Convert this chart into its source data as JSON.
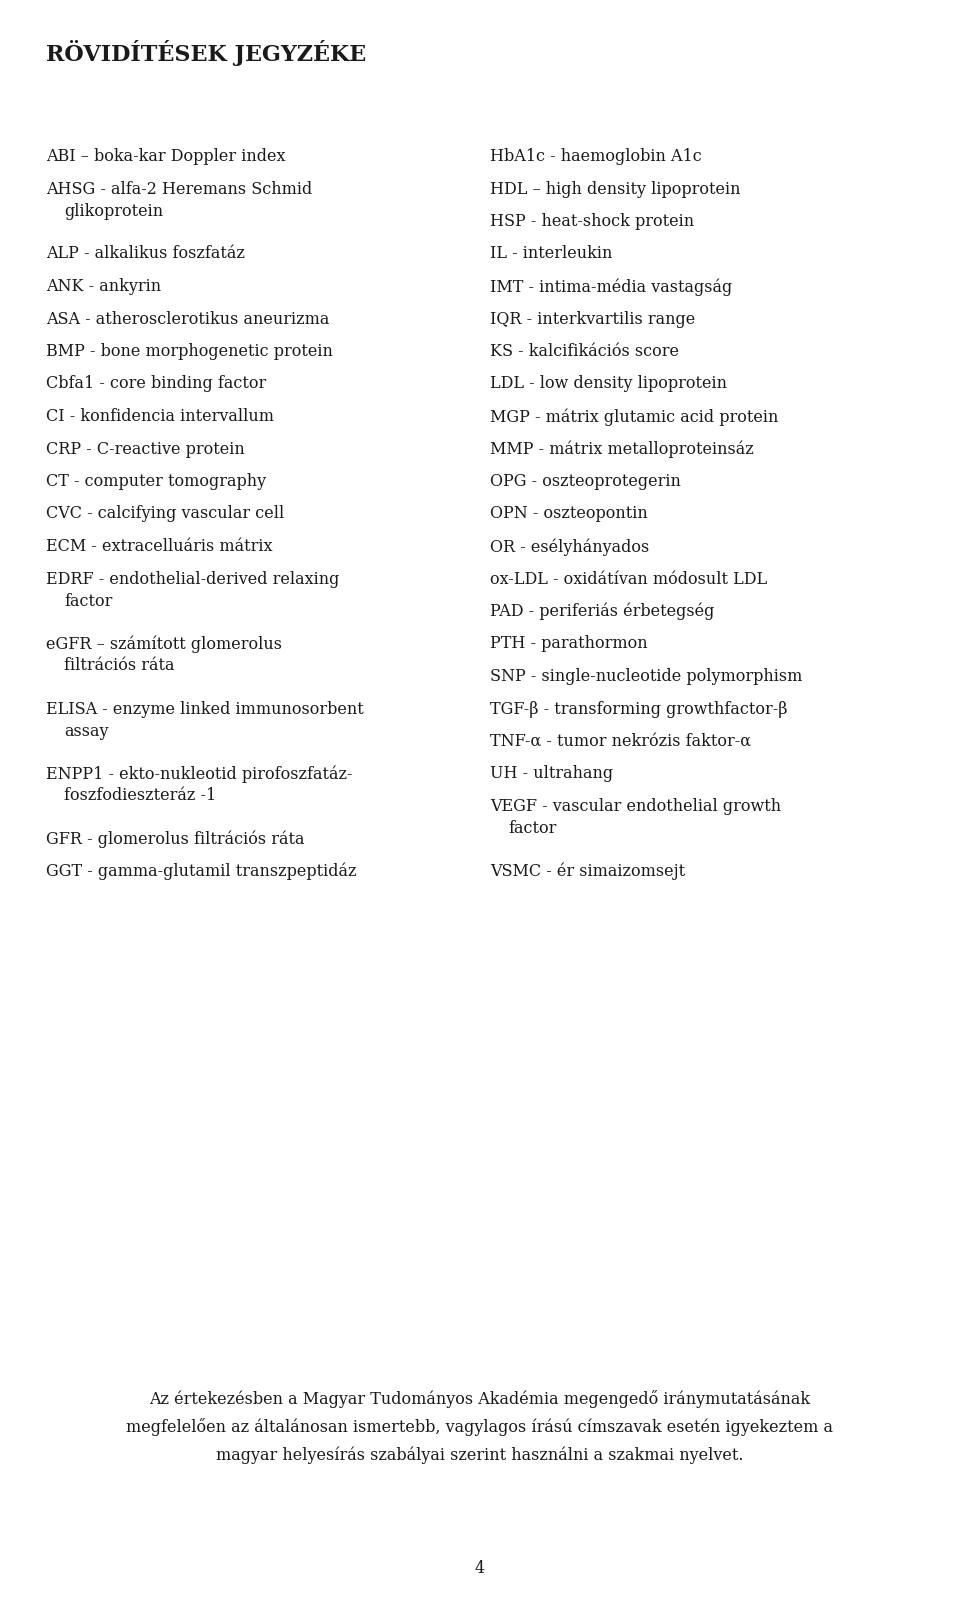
{
  "title": "RÖVIDÍTÉSEK JEGYZÉKE",
  "background_color": "#ffffff",
  "text_color": "#1a1a1a",
  "left_column": [
    [
      "ABI – boka-kar Doppler index"
    ],
    [
      "AHSG - alfa-2 Heremans Schmid",
      "  glikoprotein"
    ],
    [
      "ALP - alkalikus foszfatáz"
    ],
    [
      "ANK - ankyrin"
    ],
    [
      "ASA - atherosclerotikus aneurizma"
    ],
    [
      "BMP - bone morphogenetic protein"
    ],
    [
      "Cbfa1 - core binding factor"
    ],
    [
      "CI - konfidencia intervallum"
    ],
    [
      "CRP - C-reactive protein"
    ],
    [
      "CT - computer tomography"
    ],
    [
      "CVC - calcifying vascular cell"
    ],
    [
      "ECM - extracelluáris mátrix"
    ],
    [
      "EDRF - endothelial-derived relaxing",
      "  factor"
    ],
    [
      "eGFR – számított glomerolus",
      "  filtrációs ráta"
    ],
    [
      "ELISA - enzyme linked immunosorbent",
      "  assay"
    ],
    [
      "ENPP1 - ekto-nukleotid pirofoszfatáz-",
      "  foszfodieszteráz -1"
    ],
    [
      "GFR - glomerolus filtrációs ráta"
    ],
    [
      "GGT - gamma-glutamil transzpeptidáz"
    ]
  ],
  "right_column": [
    [
      "HbA1c - haemoglobin A1c"
    ],
    [
      "HDL – high density lipoprotein"
    ],
    [
      "HSP - heat-shock protein"
    ],
    [
      "IL - interleukin"
    ],
    [
      "IMT - intima-média vastagság"
    ],
    [
      "IQR - interkvartilis range"
    ],
    [
      "KS - kalcifikációs score"
    ],
    [
      "LDL - low density lipoprotein"
    ],
    [
      "MGP - mátrix glutamic acid protein"
    ],
    [
      "MMP - mátrix metalloproteinsáz"
    ],
    [
      "OPG - oszteoprotegerin"
    ],
    [
      "OPN - oszteopontin"
    ],
    [
      "OR - esélyhányados"
    ],
    [
      "ox-LDL - oxidátívan módosult LDL"
    ],
    [
      "PAD - periferiás érbetegség"
    ],
    [
      "PTH - parathormon"
    ],
    [
      "SNP - single-nucleotide polymorphism"
    ],
    [
      "TGF-β - transforming growthfactor-β"
    ],
    [
      "TNF-α - tumor nekrózis faktor-α"
    ],
    [
      "UH - ultrahang"
    ],
    [
      "VEGF - vascular endothelial growth",
      "  factor"
    ],
    [
      "VSMC - ér simaizomsejt"
    ]
  ],
  "footer_lines": [
    "Az értekezésben a Magyar Tudományos Akadémia megengedő iránymutatásának",
    "megfelelően az általánosan ismertebb, vagylagos írású címszavak esetén igyekeztem a",
    "magyar helyesírás szabályai szerint használni a szakmai nyelvet."
  ],
  "page_number": "4",
  "font_size": 11.5,
  "title_font_size": 16,
  "footer_font_size": 11.5
}
